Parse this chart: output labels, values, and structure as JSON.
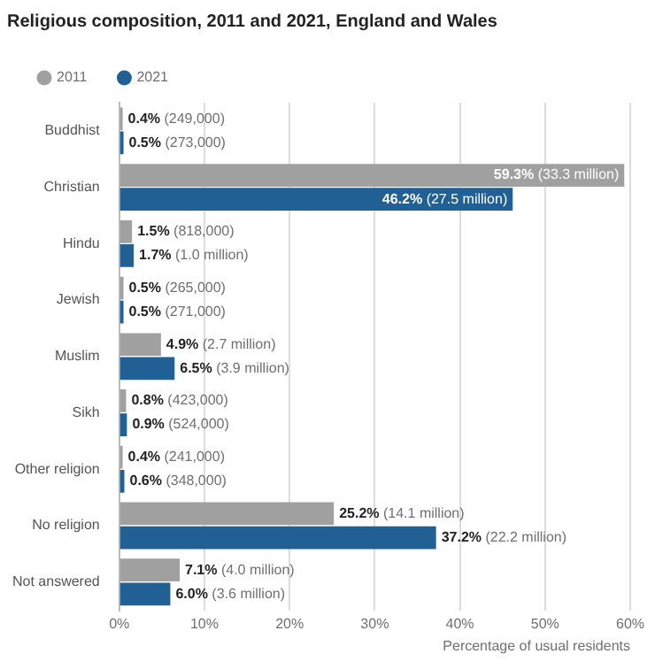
{
  "chart_data": {
    "type": "bar",
    "orientation": "horizontal",
    "title": "Religious composition, 2011 and 2021, England and Wales",
    "xlabel": "Percentage of usual residents",
    "categories": [
      "Buddhist",
      "Christian",
      "Hindu",
      "Jewish",
      "Muslim",
      "Sikh",
      "Other religion",
      "No religion",
      "Not answered"
    ],
    "series": [
      {
        "name": "2011",
        "color": "#a0a0a0",
        "values": [
          0.4,
          59.3,
          1.5,
          0.5,
          4.9,
          0.8,
          0.4,
          25.2,
          7.1
        ],
        "value_labels": [
          "0.4% (249,000)",
          "59.3% (33.3 million)",
          "1.5% (818,000)",
          "0.5% (265,000)",
          "4.9% (2.7 million)",
          "0.8% (423,000)",
          "0.4% (241,000)",
          "25.2% (14.1 million)",
          "7.1% (4.0 million)"
        ]
      },
      {
        "name": "2021",
        "color": "#206095",
        "values": [
          0.5,
          46.2,
          1.7,
          0.5,
          6.5,
          0.9,
          0.6,
          37.2,
          6.0
        ],
        "value_labels": [
          "0.5% (273,000)",
          "46.2% (27.5 million)",
          "1.7% (1.0 million)",
          "0.5% (271,000)",
          "6.5% (3.9 million)",
          "0.9% (524,000)",
          "0.6% (348,000)",
          "37.2% (22.2 million)",
          "6.0% (3.6 million)"
        ]
      }
    ],
    "xlim": [
      0,
      60
    ],
    "xticks": [
      {
        "value": 0,
        "label": "0%"
      },
      {
        "value": 10,
        "label": "10%"
      },
      {
        "value": 20,
        "label": "20%"
      },
      {
        "value": 30,
        "label": "30%"
      },
      {
        "value": 40,
        "label": "40%"
      },
      {
        "value": 50,
        "label": "50%"
      },
      {
        "value": 60,
        "label": "60%"
      }
    ],
    "grid": "x",
    "legend": "top left",
    "marker": "circle"
  }
}
